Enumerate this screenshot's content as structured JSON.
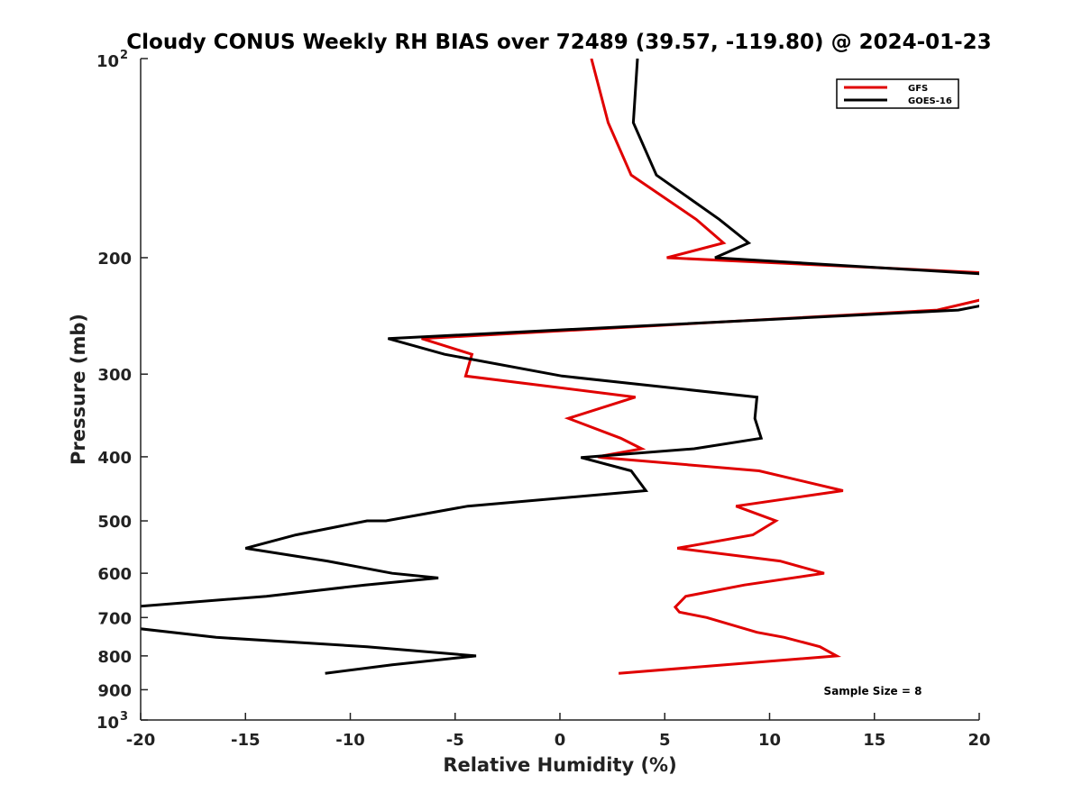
{
  "chart_data": {
    "type": "line",
    "title": "Cloudy CONUS Weekly RH BIAS over 72489 (39.57, -119.80) @ 2024-01-23",
    "xlabel": "Relative Humidity (%)",
    "ylabel": "Pressure (mb)",
    "xlim": [
      -20,
      20
    ],
    "ylim": [
      1000,
      100
    ],
    "y_scale": "log",
    "y_reversed": true,
    "x_ticks": [
      "-20",
      "-15",
      "-10",
      "-5",
      "0",
      "5",
      "10",
      "15",
      "20"
    ],
    "y_ticks": [
      {
        "value": 100,
        "base": "10",
        "exp": "2"
      },
      {
        "value": 200,
        "label": "200"
      },
      {
        "value": 300,
        "label": "300"
      },
      {
        "value": 400,
        "label": "400"
      },
      {
        "value": 500,
        "label": "500"
      },
      {
        "value": 600,
        "label": "600"
      },
      {
        "value": 700,
        "label": "700"
      },
      {
        "value": 800,
        "label": "800"
      },
      {
        "value": 900,
        "label": "900"
      },
      {
        "value": 1000,
        "base": "10",
        "exp": "3"
      }
    ],
    "grid": false,
    "legend_position": "top-right",
    "annotation": "Sample Size = 8",
    "series": [
      {
        "name": "GFS",
        "color": "#e00000",
        "points": [
          [
            1.5,
            100
          ],
          [
            2.3,
            125
          ],
          [
            3.4,
            150
          ],
          [
            6.5,
            175
          ],
          [
            7.8,
            190
          ],
          [
            5.1,
            200
          ],
          [
            20.5,
            211
          ],
          [
            20.5,
            230
          ],
          [
            18.0,
            240
          ],
          [
            -6.6,
            265
          ],
          [
            -4.2,
            280
          ],
          [
            -4.5,
            302
          ],
          [
            3.6,
            325
          ],
          [
            0.4,
            350
          ],
          [
            2.9,
            375
          ],
          [
            3.9,
            389
          ],
          [
            1.8,
            400
          ],
          [
            2.0,
            401
          ],
          [
            9.5,
            420
          ],
          [
            13.5,
            450
          ],
          [
            8.4,
            475
          ],
          [
            10.3,
            500
          ],
          [
            9.2,
            525
          ],
          [
            5.6,
            550
          ],
          [
            10.5,
            575
          ],
          [
            12.6,
            600
          ],
          [
            8.8,
            625
          ],
          [
            6.0,
            650
          ],
          [
            5.5,
            675
          ],
          [
            5.7,
            687
          ],
          [
            7.0,
            700
          ],
          [
            9.4,
            737
          ],
          [
            10.7,
            750
          ],
          [
            12.4,
            775
          ],
          [
            13.2,
            800
          ],
          [
            2.8,
            850
          ]
        ]
      },
      {
        "name": "GOES-16",
        "color": "#000000",
        "points": [
          [
            3.7,
            100
          ],
          [
            3.5,
            125
          ],
          [
            4.6,
            150
          ],
          [
            7.6,
            175
          ],
          [
            9.0,
            190
          ],
          [
            7.4,
            200
          ],
          [
            20.5,
            212
          ],
          [
            20.5,
            235
          ],
          [
            19.0,
            240
          ],
          [
            -8.2,
            265
          ],
          [
            -5.5,
            280
          ],
          [
            0.1,
            302
          ],
          [
            9.4,
            325
          ],
          [
            9.3,
            350
          ],
          [
            9.6,
            375
          ],
          [
            6.4,
            389
          ],
          [
            1.5,
            400
          ],
          [
            1.0,
            401
          ],
          [
            3.4,
            420
          ],
          [
            4.1,
            450
          ],
          [
            -4.4,
            475
          ],
          [
            -8.3,
            500
          ],
          [
            -9.2,
            500
          ],
          [
            -12.6,
            525
          ],
          [
            -15.0,
            550
          ],
          [
            -11.1,
            575
          ],
          [
            -8.0,
            600
          ],
          [
            -5.8,
            610
          ],
          [
            -9.3,
            625
          ],
          [
            -14.0,
            650
          ],
          [
            -20.5,
            675
          ],
          [
            -20.5,
            725
          ],
          [
            -16.4,
            750
          ],
          [
            -9.2,
            775
          ],
          [
            -4.0,
            800
          ],
          [
            -8.0,
            825
          ],
          [
            -11.2,
            850
          ]
        ]
      }
    ]
  }
}
